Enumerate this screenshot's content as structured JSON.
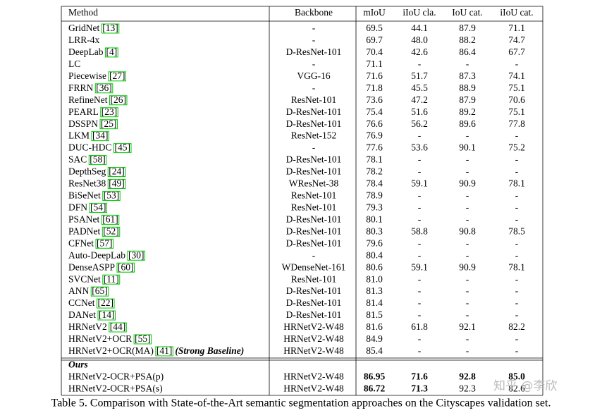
{
  "table": {
    "header": [
      "Method",
      "Backbone",
      "mIoU",
      "iIoU cla.",
      "IoU cat.",
      "iIoU cat."
    ],
    "rows": [
      {
        "method": "GridNet",
        "ref": "[13]",
        "cells": [
          "-",
          "69.5",
          "44.1",
          "87.9",
          "71.1"
        ]
      },
      {
        "method": "LRR-4x",
        "cells": [
          "-",
          "69.7",
          "48.0",
          "88.2",
          "74.7"
        ]
      },
      {
        "method": "DeepLab",
        "ref": "[4]",
        "cells": [
          "D-ResNet-101",
          "70.4",
          "42.6",
          "86.4",
          "67.7"
        ]
      },
      {
        "method": "LC",
        "cells": [
          "-",
          "71.1",
          "-",
          "-",
          "-"
        ]
      },
      {
        "method": "Piecewise",
        "ref": "[27]",
        "cells": [
          "VGG-16",
          "71.6",
          "51.7",
          "87.3",
          "74.1"
        ]
      },
      {
        "method": "FRRN",
        "ref": "[36]",
        "cells": [
          "-",
          "71.8",
          "45.5",
          "88.9",
          "75.1"
        ]
      },
      {
        "method": "RefineNet",
        "ref": "[26]",
        "cells": [
          "ResNet-101",
          "73.6",
          "47.2",
          "87.9",
          "70.6"
        ]
      },
      {
        "method": "PEARL",
        "ref": "[23]",
        "cells": [
          "D-ResNet-101",
          "75.4",
          "51.6",
          "89.2",
          "75.1"
        ]
      },
      {
        "method": "DSSPN",
        "ref": "[25]",
        "cells": [
          "D-ResNet-101",
          "76.6",
          "56.2",
          "89.6",
          "77.8"
        ]
      },
      {
        "method": "LKM",
        "ref": "[34]",
        "cells": [
          "ResNet-152",
          "76.9",
          "-",
          "-",
          "-"
        ]
      },
      {
        "method": "DUC-HDC",
        "ref": "[45]",
        "cells": [
          "-",
          "77.6",
          "53.6",
          "90.1",
          "75.2"
        ]
      },
      {
        "method": "SAC",
        "ref": "[58]",
        "cells": [
          "D-ResNet-101",
          "78.1",
          "-",
          "-",
          "-"
        ]
      },
      {
        "method": "DepthSeg",
        "ref": "[24]",
        "cells": [
          "D-ResNet-101",
          "78.2",
          "-",
          "-",
          "-"
        ]
      },
      {
        "method": "ResNet38",
        "ref": "[49]",
        "cells": [
          "WResNet-38",
          "78.4",
          "59.1",
          "90.9",
          "78.1"
        ]
      },
      {
        "method": "BiSeNet",
        "ref": "[53]",
        "cells": [
          "ResNet-101",
          "78.9",
          "-",
          "-",
          "-"
        ]
      },
      {
        "method": "DFN",
        "ref": "[54]",
        "cells": [
          "ResNet-101",
          "79.3",
          "-",
          "-",
          "-"
        ]
      },
      {
        "method": "PSANet",
        "ref": "[61]",
        "cells": [
          "D-ResNet-101",
          "80.1",
          "-",
          "-",
          "-"
        ]
      },
      {
        "method": "PADNet",
        "ref": "[52]",
        "cells": [
          "D-ResNet-101",
          "80.3",
          "58.8",
          "90.8",
          "78.5"
        ]
      },
      {
        "method": "CFNet",
        "ref": "[57]",
        "cells": [
          "D-ResNet-101",
          "79.6",
          "-",
          "-",
          "-"
        ]
      },
      {
        "method": "Auto-DeepLab",
        "ref": "[30]",
        "cells": [
          "-",
          "80.4",
          "-",
          "-",
          "-"
        ]
      },
      {
        "method": "DenseASPP",
        "ref": "[60]",
        "cells": [
          "WDenseNet-161",
          "80.6",
          "59.1",
          "90.9",
          "78.1"
        ]
      },
      {
        "method": "SVCNet",
        "ref": "[11]",
        "cells": [
          "ResNet-101",
          "81.0",
          "-",
          "-",
          "-"
        ]
      },
      {
        "method": "ANN",
        "ref": "[65]",
        "cells": [
          "D-ResNet-101",
          "81.3",
          "-",
          "-",
          "-"
        ]
      },
      {
        "method": "CCNet",
        "ref": "[22]",
        "cells": [
          "D-ResNet-101",
          "81.4",
          "-",
          "-",
          "-"
        ]
      },
      {
        "method": "DANet",
        "ref": "[14]",
        "cells": [
          "D-ResNet-101",
          "81.5",
          "-",
          "-",
          "-"
        ]
      },
      {
        "method": "HRNetV2",
        "ref": "[44]",
        "cells": [
          "HRNetV2-W48",
          "81.6",
          "61.8",
          "92.1",
          "82.2"
        ]
      },
      {
        "method": "HRNetV2+OCR",
        "ref": "[55]",
        "cells": [
          "HRNetV2-W48",
          "84.9",
          "-",
          "-",
          "-"
        ]
      },
      {
        "method": "HRNetV2+OCR(MA)",
        "ref": "[41]",
        "note": "(Strong Baseline)",
        "cells": [
          "HRNetV2-W48",
          "85.4",
          "-",
          "-",
          "-"
        ]
      }
    ],
    "group": {
      "label": "Ours",
      "rows": [
        {
          "method": "HRNetV2-OCR+PSA(p)",
          "cells": [
            "HRNetV2-W48",
            "86.95",
            "71.6",
            "92.8",
            "85.0"
          ],
          "bold": [
            false,
            true,
            true,
            true,
            true
          ]
        },
        {
          "method": "HRNetV2-OCR+PSA(s)",
          "cells": [
            "HRNetV2-W48",
            "86.72",
            "71.3",
            "92.3",
            "82.6"
          ],
          "bold": [
            false,
            true,
            true,
            false,
            false
          ]
        }
      ]
    }
  },
  "caption": "Table 5. Comparison with State-of-the-Art semantic segmentation approaches on the Cityscapes validation set.",
  "watermark": "知乎 @李欣"
}
